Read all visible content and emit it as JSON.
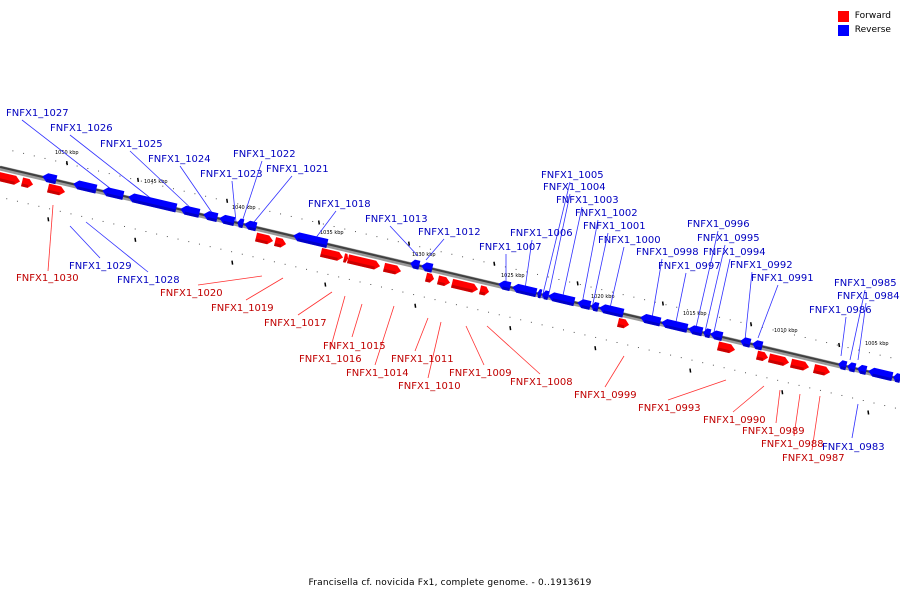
{
  "legend": {
    "forward_label": "Forward",
    "reverse_label": "Reverse",
    "forward_color": "#ff0000",
    "reverse_color": "#0000ff"
  },
  "caption": "Francisella cf. novicida Fx1, complete genome. - 0..1913619",
  "ticks": [
    "1050 kbp",
    "1045 kbp",
    "1040 kbp",
    "1035 kbp",
    "1030 kbp",
    "1025 kbp",
    "1020 kbp",
    "1015 kbp",
    "1010 kbp",
    "1005 kbp"
  ],
  "genes": [
    {
      "id": "FNFX1_1030",
      "strand": "forward",
      "labeled": true
    },
    {
      "id": "FNFX1_1029",
      "strand": "reverse",
      "labeled": true
    },
    {
      "id": "FNFX1_1028",
      "strand": "reverse",
      "labeled": true
    },
    {
      "id": "FNFX1_1027",
      "strand": "reverse",
      "labeled": true
    },
    {
      "id": "FNFX1_1026",
      "strand": "reverse",
      "labeled": true
    },
    {
      "id": "FNFX1_1025",
      "strand": "reverse",
      "labeled": true
    },
    {
      "id": "FNFX1_1024",
      "strand": "reverse",
      "labeled": true
    },
    {
      "id": "FNFX1_1023",
      "strand": "reverse",
      "labeled": true
    },
    {
      "id": "FNFX1_1022",
      "strand": "reverse",
      "labeled": true
    },
    {
      "id": "FNFX1_1021",
      "strand": "reverse",
      "labeled": true
    },
    {
      "id": "FNFX1_1020",
      "strand": "forward",
      "labeled": true
    },
    {
      "id": "FNFX1_1019",
      "strand": "forward",
      "labeled": true
    },
    {
      "id": "FNFX1_1018",
      "strand": "reverse",
      "labeled": true
    },
    {
      "id": "FNFX1_1017",
      "strand": "forward",
      "labeled": true
    },
    {
      "id": "FNFX1_1016",
      "strand": "forward",
      "labeled": true
    },
    {
      "id": "FNFX1_1015",
      "strand": "forward",
      "labeled": true
    },
    {
      "id": "FNFX1_1014",
      "strand": "forward",
      "labeled": true
    },
    {
      "id": "FNFX1_1013",
      "strand": "reverse",
      "labeled": true
    },
    {
      "id": "FNFX1_1012",
      "strand": "reverse",
      "labeled": true
    },
    {
      "id": "FNFX1_1011",
      "strand": "forward",
      "labeled": true
    },
    {
      "id": "FNFX1_1010",
      "strand": "forward",
      "labeled": true
    },
    {
      "id": "FNFX1_1009",
      "strand": "forward",
      "labeled": true
    },
    {
      "id": "FNFX1_1008",
      "strand": "forward",
      "labeled": true
    },
    {
      "id": "FNFX1_1007",
      "strand": "reverse",
      "labeled": true
    },
    {
      "id": "FNFX1_1006",
      "strand": "reverse",
      "labeled": true
    },
    {
      "id": "FNFX1_1005",
      "strand": "reverse",
      "labeled": true
    },
    {
      "id": "FNFX1_1004",
      "strand": "reverse",
      "labeled": true
    },
    {
      "id": "FNFX1_1003",
      "strand": "reverse",
      "labeled": true
    },
    {
      "id": "FNFX1_1002",
      "strand": "reverse",
      "labeled": true
    },
    {
      "id": "FNFX1_1001",
      "strand": "reverse",
      "labeled": true
    },
    {
      "id": "FNFX1_1000",
      "strand": "reverse",
      "labeled": true
    },
    {
      "id": "FNFX1_0999",
      "strand": "forward",
      "labeled": true
    },
    {
      "id": "FNFX1_0998",
      "strand": "reverse",
      "labeled": true
    },
    {
      "id": "FNFX1_0997",
      "strand": "reverse",
      "labeled": true
    },
    {
      "id": "FNFX1_0996",
      "strand": "reverse",
      "labeled": true
    },
    {
      "id": "FNFX1_0995",
      "strand": "reverse",
      "labeled": true
    },
    {
      "id": "FNFX1_0994",
      "strand": "reverse",
      "labeled": true
    },
    {
      "id": "FNFX1_0993",
      "strand": "forward",
      "labeled": true
    },
    {
      "id": "FNFX1_0992",
      "strand": "reverse",
      "labeled": true
    },
    {
      "id": "FNFX1_0991",
      "strand": "reverse",
      "labeled": true
    },
    {
      "id": "FNFX1_0990",
      "strand": "forward",
      "labeled": true
    },
    {
      "id": "FNFX1_0989",
      "strand": "forward",
      "labeled": true
    },
    {
      "id": "FNFX1_0988",
      "strand": "forward",
      "labeled": true
    },
    {
      "id": "FNFX1_0987",
      "strand": "forward",
      "labeled": true
    },
    {
      "id": "FNFX1_0986",
      "strand": "reverse",
      "labeled": true
    },
    {
      "id": "FNFX1_0985",
      "strand": "reverse",
      "labeled": true
    },
    {
      "id": "FNFX1_0984",
      "strand": "reverse",
      "labeled": true
    },
    {
      "id": "FNFX1_0983",
      "strand": "reverse",
      "labeled": true
    }
  ]
}
